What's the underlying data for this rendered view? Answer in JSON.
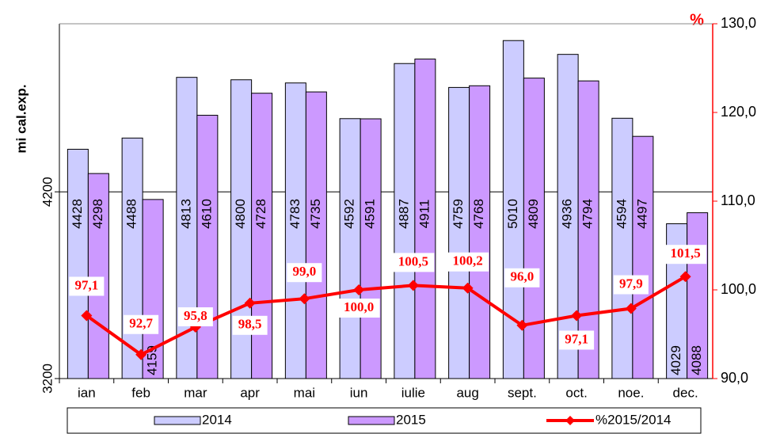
{
  "chart_data": {
    "type": "bar",
    "y_label": "mi cal.exp.",
    "y2_label": "%",
    "categories": [
      "ian",
      "feb",
      "mar",
      "apr",
      "mai",
      "iun",
      "iulie",
      "aug",
      "sept.",
      "oct.",
      "noe.",
      "dec."
    ],
    "series": [
      {
        "name": "2014",
        "color": "#ccccff",
        "values": [
          4428,
          4488,
          4813,
          4800,
          4783,
          4592,
          4887,
          4759,
          5010,
          4936,
          4594,
          4029
        ]
      },
      {
        "name": "2015",
        "color": "#cc99ff",
        "values": [
          4298,
          4159,
          4610,
          4728,
          4735,
          4591,
          4911,
          4768,
          4809,
          4794,
          4497,
          4088
        ]
      },
      {
        "name": "%2015/2014",
        "type": "line",
        "axis": "y2",
        "color": "#ff0000",
        "values": [
          97.1,
          92.7,
          95.8,
          98.5,
          99.0,
          100.0,
          100.5,
          100.2,
          96.0,
          97.1,
          97.9,
          101.5
        ],
        "value_labels": [
          "97,1",
          "92,7",
          "95,8",
          "98,5",
          "99,0",
          "100,0",
          "100,5",
          "100,2",
          "96,0",
          "97,1",
          "97,9",
          "101,5"
        ]
      }
    ],
    "ylim": [
      3200,
      5100
    ],
    "yticks": [
      3200,
      4200
    ],
    "y2lim": [
      90,
      130
    ],
    "y2ticks": [
      {
        "value": 90,
        "label": "90,0"
      },
      {
        "value": 100,
        "label": "100,0"
      },
      {
        "value": 110,
        "label": "110,0"
      },
      {
        "value": 120,
        "label": "120,0"
      },
      {
        "value": 130,
        "label": "130,0"
      }
    ],
    "grid": true,
    "legend": "bottom"
  }
}
